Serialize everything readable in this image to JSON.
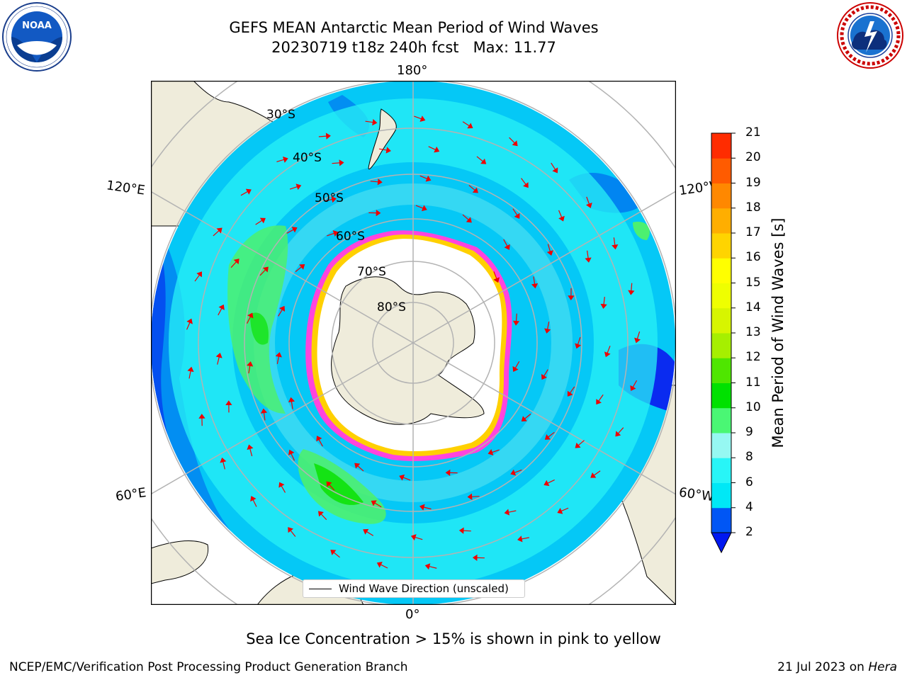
{
  "title": {
    "line1": "GEFS MEAN Antarctic Mean Period of Wind Waves",
    "line2": "20230719 t18z 240h fcst   Max: 11.77"
  },
  "logos": {
    "left": "NOAA",
    "left_ring_text": "NATIONAL OCEANIC AND ATMOSPHERIC ADMINISTRATION · U.S. DEPARTMENT OF COMMERCE",
    "right_ring_text": "NATIONAL WEATHER SERVICE"
  },
  "map": {
    "projection": "south-polar stereographic",
    "longitude_labels": {
      "top": "180°",
      "bottom": "0°",
      "upper_left": "120°E",
      "upper_right": "120°W",
      "lower_left": "60°E",
      "lower_right": "60°W"
    },
    "latitude_labels": [
      "30°S",
      "40°S",
      "50°S",
      "60°S",
      "70°S",
      "80°S"
    ],
    "colors": {
      "land": "#efecdb",
      "ocean_2_4": "#0a2bf0",
      "ocean_4_6": "#05c8f6",
      "ocean_6_8": "#28f0f5",
      "ocean_8_9": "#8ff5ee",
      "ocean_9_10": "#4cf070",
      "ocean_10_11": "#14e314",
      "sea_ice": "#ff44dd",
      "sea_ice_edge": "#ffd000",
      "arrows": "#ee0000",
      "graticule": "#b3b3b3"
    }
  },
  "legend": {
    "label": "Wind Wave Direction (unscaled)"
  },
  "colorbar": {
    "label": "Mean Period of Wind Waves [s]",
    "ticks": [
      "2",
      "4",
      "6",
      "8",
      "9",
      "10",
      "11",
      "12",
      "13",
      "14",
      "15",
      "16",
      "17",
      "18",
      "19",
      "20",
      "21"
    ],
    "colors": [
      "#0056f5",
      "#00e8f6",
      "#28f5f7",
      "#96f8f2",
      "#4af774",
      "#00e100",
      "#4fe600",
      "#a6ef00",
      "#d7f500",
      "#efff00",
      "#ffff00",
      "#ffd400",
      "#ffae00",
      "#ff8800",
      "#ff5b00",
      "#ff2c00"
    ],
    "under_color": "#0018f0"
  },
  "caption": "Sea Ice Concentration > 15% is shown in pink to yellow",
  "footer": {
    "left": "NCEP/EMC/Verification Post Processing Product Generation Branch",
    "right_date": "21 Jul 2023 on ",
    "right_host": "Hera"
  }
}
